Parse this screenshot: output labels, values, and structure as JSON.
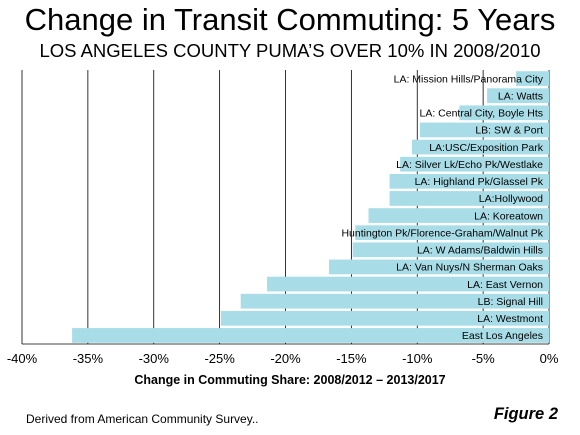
{
  "chart_data": {
    "type": "bar",
    "orientation": "horizontal",
    "title": "Change in Transit Commuting: 5 Years",
    "subtitle": "LOS ANGELES COUNTY PUMA’S OVER 10% IN 2008/2010",
    "xlabel": "Change in Commuting Share: 2008/2012 – 2013/2017",
    "ylabel": "",
    "xlim": [
      -0.4,
      0.0
    ],
    "ticks": [
      -0.4,
      -0.35,
      -0.3,
      -0.25,
      -0.2,
      -0.15,
      -0.1,
      -0.05,
      0.0
    ],
    "tick_labels": [
      "-40%",
      "-35%",
      "-30%",
      "-25%",
      "-20%",
      "-15%",
      "-10%",
      "-5%",
      "0%"
    ],
    "grid": true,
    "bar_color": "#a8dde8",
    "categories": [
      "LA: Mission Hills/Panorama City",
      "LA: Watts",
      "LA: Central City, Boyle Hts",
      "LB: SW & Port",
      "LA:USC/Exposition Park",
      "LA: Silver Lk/Echo Pk/Westlake",
      "LA: Highland Pk/Glassel Pk",
      "LA:Hollywood",
      "LA: Koreatown",
      "Huntington Pk/Florence-Graham/Walnut Pk",
      "LA: W Adams/Baldwin Hills",
      "LA: Van Nuys/N Sherman Oaks",
      "LA: East Vernon",
      "LB: Signal Hill",
      "LA: Westmont",
      "East Los Angeles"
    ],
    "values": [
      -0.025,
      -0.047,
      -0.068,
      -0.098,
      -0.104,
      -0.113,
      -0.121,
      -0.121,
      -0.137,
      -0.147,
      -0.149,
      -0.167,
      -0.214,
      -0.234,
      -0.249,
      -0.362
    ]
  },
  "source": "Derived from American Community Survey..",
  "figure_label": "Figure 2"
}
